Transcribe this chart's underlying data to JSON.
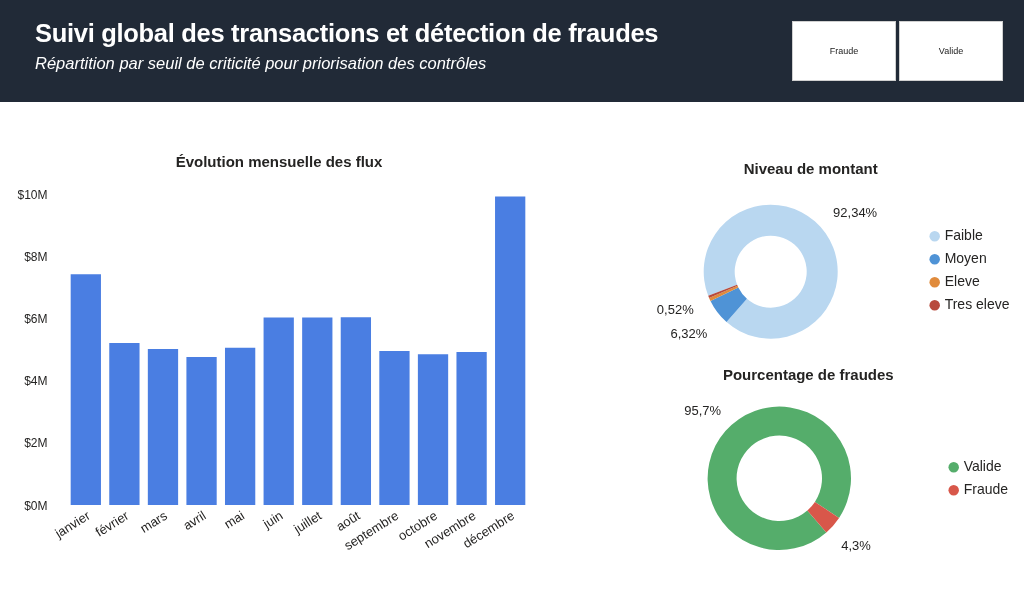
{
  "chart_data": [
    {
      "type": "other",
      "title": "Suivi global des transactions et détection de fraudes",
      "subtitle": "Répartition par seuil de criticité pour priorisation des contrôles",
      "annotations": [
        "Fraude",
        "Valide"
      ]
    },
    {
      "type": "bar",
      "title": "Évolution mensuelle des flux",
      "categories": [
        "janvier",
        "février",
        "mars",
        "avril",
        "mai",
        "juin",
        "juillet",
        "août",
        "septembre",
        "octobre",
        "novembre",
        "décembre"
      ],
      "values": [
        7.42,
        5.21,
        5.02,
        4.76,
        5.06,
        6.03,
        6.03,
        6.04,
        4.95,
        4.85,
        4.92,
        9.92
      ],
      "color": "#4a7ee2",
      "ylim": [
        0,
        10
      ],
      "yticks": [
        {
          "value": 0,
          "label": "$0M"
        },
        {
          "value": 2,
          "label": "$2M"
        },
        {
          "value": 4,
          "label": "$4M"
        },
        {
          "value": 6,
          "label": "$6M"
        },
        {
          "value": 8,
          "label": "$8M"
        },
        {
          "value": 10,
          "label": "$10M"
        }
      ]
    },
    {
      "type": "donut",
      "title": "Niveau de montant",
      "categories": [
        "Faible",
        "Moyen",
        "Eleve",
        "Tres eleve"
      ],
      "values": [
        92.34,
        6.32,
        0.82,
        0.52
      ],
      "colors": [
        "#b9d7f0",
        "#4f93d6",
        "#e08b3c",
        "#b84a3c"
      ],
      "value_labels": [
        "92,34%",
        "6,32%",
        null,
        "0,52%"
      ],
      "legend": "right"
    },
    {
      "type": "donut",
      "title": "Pourcentage de fraudes",
      "categories": [
        "Valide",
        "Fraude"
      ],
      "values": [
        95.7,
        4.3
      ],
      "colors": [
        "#55ad6b",
        "#d8574a"
      ],
      "value_labels": [
        "95,7%",
        "4,3%"
      ],
      "legend": "right"
    }
  ]
}
